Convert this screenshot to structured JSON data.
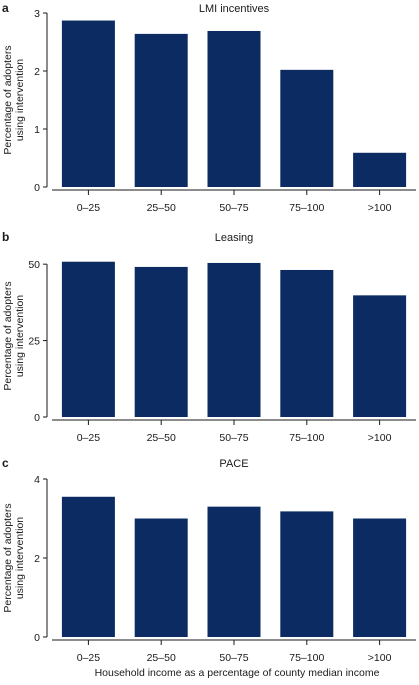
{
  "figure": {
    "xlabel": "Household income as a percentage of county median income"
  },
  "chart_data": [
    {
      "type": "bar",
      "panel": "a",
      "title": "LMI incentives",
      "ylabel_lines": [
        "Percentage of adopters",
        "using intervention"
      ],
      "categories": [
        "0–25",
        "25–50",
        "50–75",
        "75–100",
        ">100"
      ],
      "values": [
        2.87,
        2.64,
        2.69,
        2.02,
        0.59
      ],
      "ylim": [
        0,
        3
      ],
      "yticks": [
        0,
        1,
        2,
        3
      ],
      "color": "#0c2b63"
    },
    {
      "type": "bar",
      "panel": "b",
      "title": "Leasing",
      "ylabel_lines": [
        "Percentage of adopters",
        "using intervention"
      ],
      "categories": [
        "0–25",
        "25–50",
        "50–75",
        "75–100",
        ">100"
      ],
      "values": [
        50.8,
        49.1,
        50.4,
        48.1,
        39.8
      ],
      "ylim": [
        0,
        53
      ],
      "yticks": [
        0,
        25,
        50
      ],
      "color": "#0c2b63"
    },
    {
      "type": "bar",
      "panel": "c",
      "title": "PACE",
      "ylabel_lines": [
        "Percentage of adopters",
        "using intervention"
      ],
      "categories": [
        "0–25",
        "25–50",
        "50–75",
        "75–100",
        ">100"
      ],
      "values": [
        3.55,
        3.0,
        3.3,
        3.18,
        3.0
      ],
      "ylim": [
        0,
        4
      ],
      "yticks": [
        0,
        2,
        4
      ],
      "color": "#0c2b63"
    }
  ]
}
